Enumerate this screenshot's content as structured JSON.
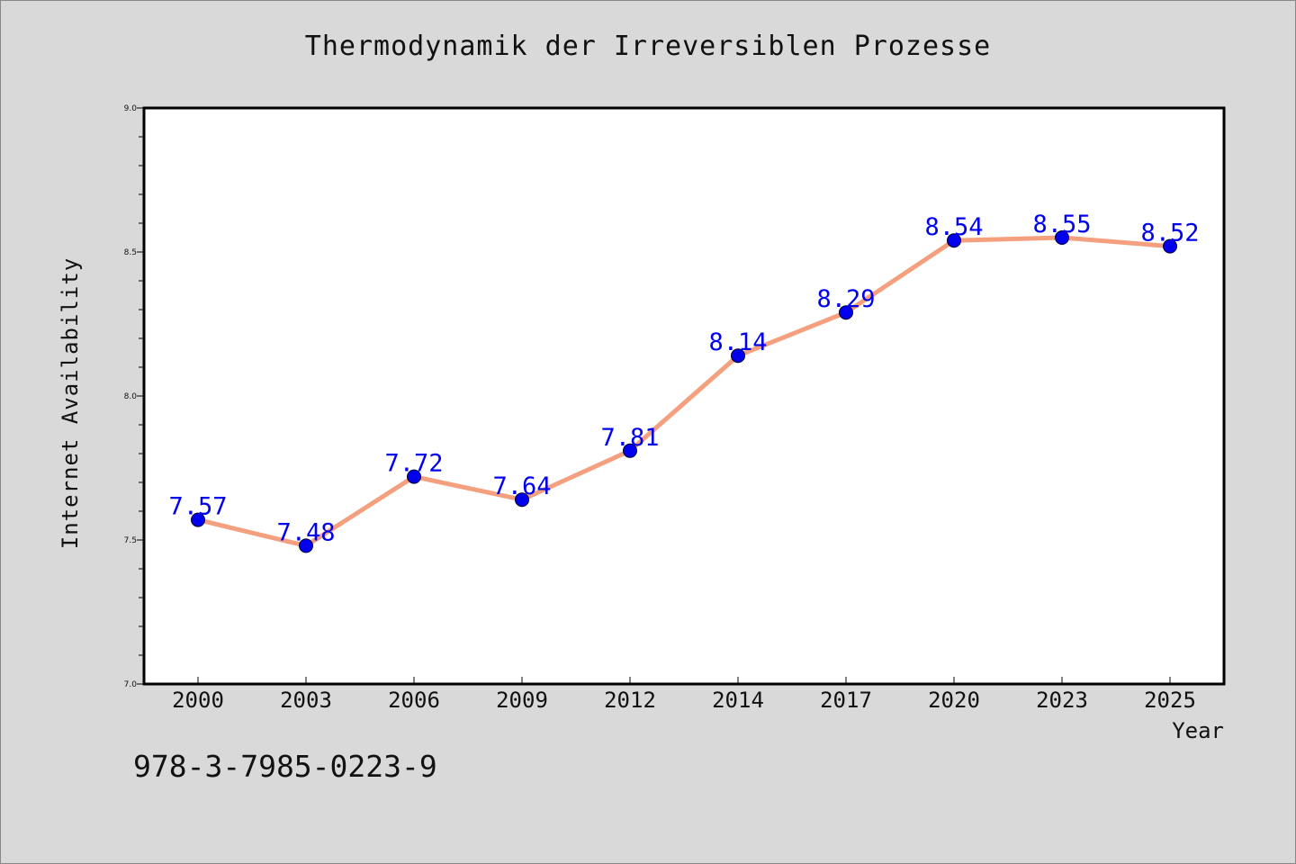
{
  "chart_data": {
    "type": "line",
    "title": "Thermodynamik der Irreversiblen Prozesse",
    "xlabel": "Year",
    "ylabel": "Internet Availability",
    "categories": [
      "2000",
      "2003",
      "2006",
      "2009",
      "2012",
      "2014",
      "2017",
      "2020",
      "2023",
      "2025"
    ],
    "series": [
      {
        "values": [
          7.57,
          7.48,
          7.72,
          7.64,
          7.81,
          8.14,
          8.29,
          8.54,
          8.55,
          8.52
        ],
        "data_labels": [
          "7.57",
          "7.48",
          "7.72",
          "7.64",
          "7.81",
          "8.14",
          "8.29",
          "8.54",
          "8.55",
          "8.52"
        ],
        "line_color": "#f4a07e",
        "marker_color": "#0000ee",
        "label_color": "#0000ee"
      }
    ],
    "ylim": [
      7.0,
      9.0
    ],
    "yticks": [
      "7.0",
      "7.5",
      "8.0",
      "8.5",
      "9.0"
    ],
    "grid": false,
    "legend": "none"
  },
  "footer": {
    "isbn": "978-3-7985-0223-9"
  },
  "colors": {
    "background": "#d9d9d9",
    "plot_background": "#ffffff",
    "axis": "#000000"
  }
}
